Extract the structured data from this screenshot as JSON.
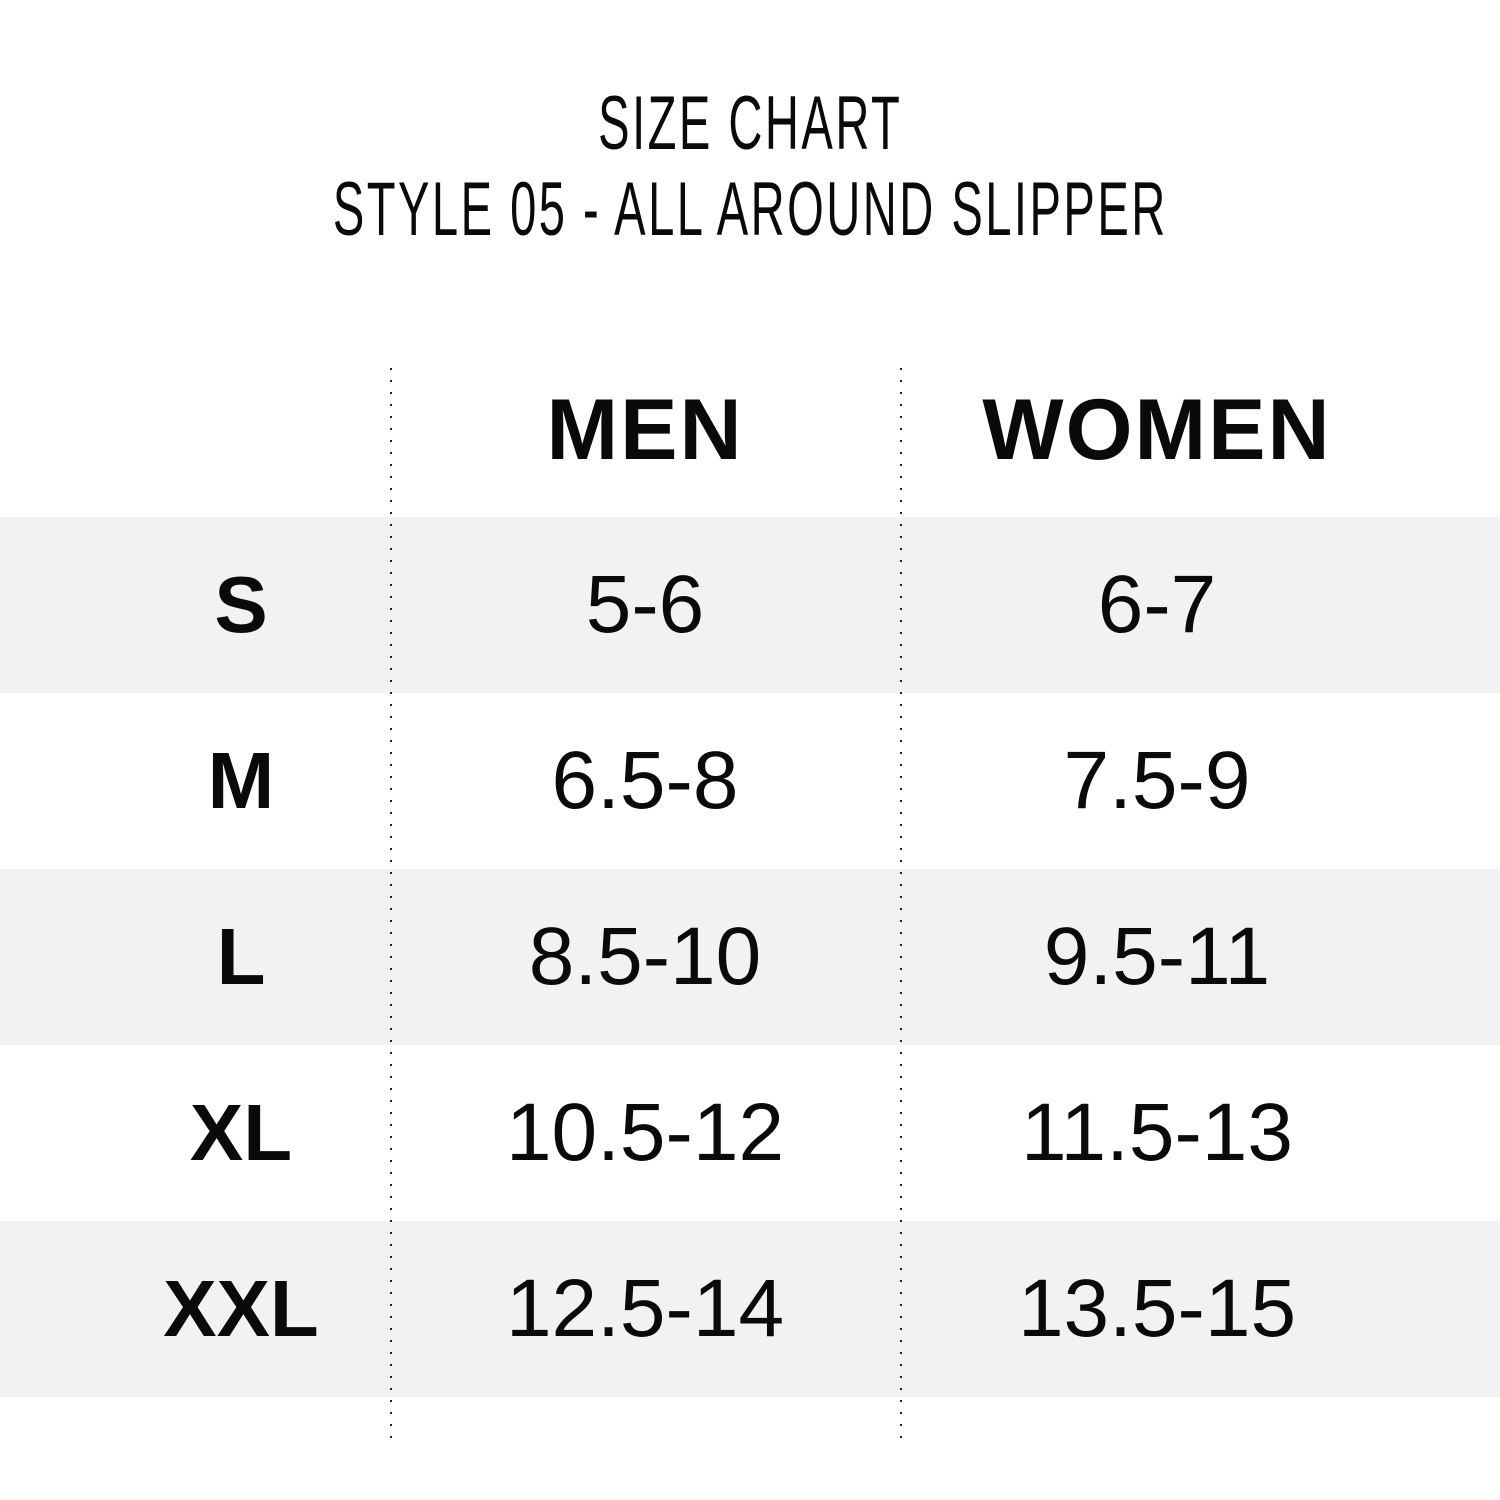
{
  "title": {
    "line1": "SIZE CHART",
    "line2": "STYLE 05 - ALL AROUND SLIPPER"
  },
  "table": {
    "headers": [
      "",
      "MEN",
      "WOMEN"
    ],
    "rows": [
      {
        "size": "S",
        "men": "5-6",
        "women": "6-7"
      },
      {
        "size": "M",
        "men": "6.5-8",
        "women": "7.5-9"
      },
      {
        "size": "L",
        "men": "8.5-10",
        "women": "9.5-11"
      },
      {
        "size": "XL",
        "men": "10.5-12",
        "women": "11.5-13"
      },
      {
        "size": "XXL",
        "men": "12.5-14",
        "women": "13.5-15"
      }
    ]
  },
  "colors": {
    "stripe": "#f1f2f4",
    "text": "#0a0a0a"
  }
}
